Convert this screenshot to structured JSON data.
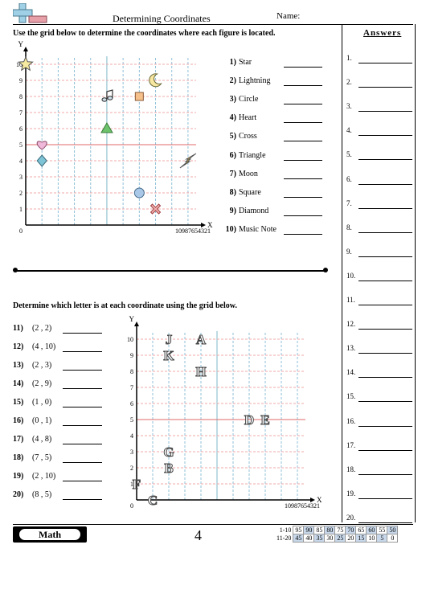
{
  "header": {
    "title": "Determining Coordinates",
    "name_label": "Name:",
    "answers_label": "Answers"
  },
  "section1": {
    "instruction": "Use the grid below to determine the coordinates where each figure is located.",
    "questions": [
      {
        "num": "1)",
        "label": "Star"
      },
      {
        "num": "2)",
        "label": "Lightning"
      },
      {
        "num": "3)",
        "label": "Circle"
      },
      {
        "num": "4)",
        "label": "Heart"
      },
      {
        "num": "5)",
        "label": "Cross"
      },
      {
        "num": "6)",
        "label": "Triangle"
      },
      {
        "num": "7)",
        "label": "Moon"
      },
      {
        "num": "8)",
        "label": "Square"
      },
      {
        "num": "9)",
        "label": "Diamond"
      },
      {
        "num": "10)",
        "label": "Music Note"
      }
    ],
    "grid": {
      "y_axis_label": "Y",
      "x_axis_label": "X",
      "origin_label": "0",
      "y_ticks": [
        "1",
        "2",
        "3",
        "4",
        "5",
        "6",
        "7",
        "8",
        "9",
        "10"
      ],
      "x_ticks": [
        "1",
        "2",
        "3",
        "4",
        "5",
        "6",
        "7",
        "8",
        "9",
        "10"
      ],
      "figures": [
        {
          "name": "star",
          "x": 0,
          "y": 10,
          "color": "#f6eaa0"
        },
        {
          "name": "lightning",
          "x": 10,
          "y": 4,
          "color": "#f3d23a"
        },
        {
          "name": "circle",
          "x": 7,
          "y": 2,
          "color": "#a9c8e8"
        },
        {
          "name": "heart",
          "x": 1,
          "y": 5,
          "color": "#f0b8d8"
        },
        {
          "name": "cross",
          "x": 8,
          "y": 1,
          "color": "#f4b2b2"
        },
        {
          "name": "triangle",
          "x": 5,
          "y": 6,
          "color": "#6cc36c"
        },
        {
          "name": "moon",
          "x": 8,
          "y": 9,
          "color": "#f6e6a0"
        },
        {
          "name": "square",
          "x": 7,
          "y": 8,
          "color": "#f6c08a"
        },
        {
          "name": "diamond",
          "x": 1,
          "y": 4,
          "color": "#7ec4d6"
        },
        {
          "name": "music-note",
          "x": 5,
          "y": 8,
          "color": "#cfe0ea"
        }
      ]
    }
  },
  "section2": {
    "instruction": "Determine which letter is at each coordinate using the grid below.",
    "questions": [
      {
        "num": "11)",
        "coord": "(2 , 2)"
      },
      {
        "num": "12)",
        "coord": "(4 , 10)"
      },
      {
        "num": "13)",
        "coord": "(2 , 3)"
      },
      {
        "num": "14)",
        "coord": "(2 , 9)"
      },
      {
        "num": "15)",
        "coord": "(1 , 0)"
      },
      {
        "num": "16)",
        "coord": "(0 , 1)"
      },
      {
        "num": "17)",
        "coord": "(4 , 8)"
      },
      {
        "num": "18)",
        "coord": "(7 , 5)"
      },
      {
        "num": "19)",
        "coord": "(2 , 10)"
      },
      {
        "num": "20)",
        "coord": "(8 , 5)"
      }
    ],
    "grid": {
      "y_axis_label": "Y",
      "x_axis_label": "X",
      "origin_label": "0",
      "y_ticks": [
        "1",
        "2",
        "3",
        "4",
        "5",
        "6",
        "7",
        "8",
        "9",
        "10"
      ],
      "x_ticks": [
        "1",
        "2",
        "3",
        "4",
        "5",
        "6",
        "7",
        "8",
        "9",
        "10"
      ],
      "letters": [
        {
          "letter": "J",
          "x": 2,
          "y": 10
        },
        {
          "letter": "A",
          "x": 4,
          "y": 10
        },
        {
          "letter": "K",
          "x": 2,
          "y": 9
        },
        {
          "letter": "H",
          "x": 4,
          "y": 8
        },
        {
          "letter": "D",
          "x": 7,
          "y": 5
        },
        {
          "letter": "E",
          "x": 8,
          "y": 5
        },
        {
          "letter": "G",
          "x": 2,
          "y": 3
        },
        {
          "letter": "B",
          "x": 2,
          "y": 2
        },
        {
          "letter": "F",
          "x": 0,
          "y": 1
        },
        {
          "letter": "C",
          "x": 1,
          "y": 0
        }
      ]
    }
  },
  "answers": [
    "1.",
    "2.",
    "3.",
    "4.",
    "5.",
    "6.",
    "7.",
    "8.",
    "9.",
    "10.",
    "11.",
    "12.",
    "13.",
    "14.",
    "15.",
    "16.",
    "17.",
    "18.",
    "19.",
    "20."
  ],
  "footer": {
    "subject": "Math",
    "page_number": "4",
    "score_rows": [
      {
        "label": "1-10",
        "cells": [
          "95",
          "90",
          "85",
          "80",
          "75",
          "70",
          "65",
          "60",
          "55",
          "50"
        ]
      },
      {
        "label": "11-20",
        "cells": [
          "45",
          "40",
          "35",
          "30",
          "25",
          "20",
          "15",
          "10",
          "5",
          "0"
        ]
      }
    ]
  }
}
